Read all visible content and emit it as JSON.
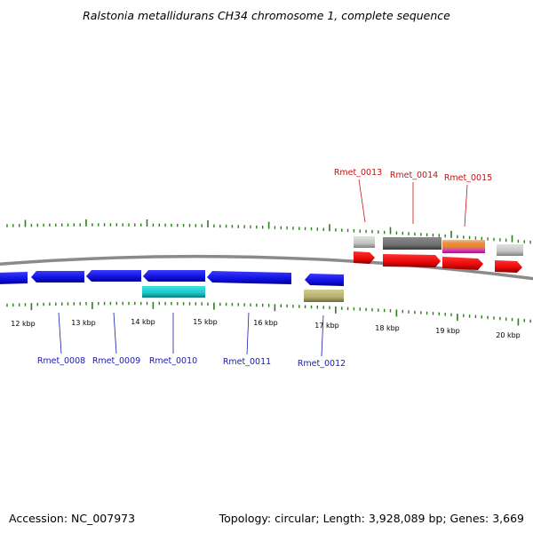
{
  "header": {
    "title": "Ralstonia metallidurans CH34 chromosome 1, complete sequence"
  },
  "footer": {
    "accession": "Accession: NC_007973",
    "summary": "Topology: circular; Length: 3,928,089 bp; Genes: 3,669"
  },
  "colors": {
    "backbone": "#8a8a8a",
    "tick": "#2e7d1e",
    "cds": "#1010e0",
    "cds_dark": "#00008a",
    "cds_forward": "#e80808",
    "cds_forward_dark": "#8a0000",
    "teal": "#1cc8c8",
    "olive": "#b5b070",
    "gray_light": "#c4c4c4",
    "gray_dark": "#707070",
    "label_reverse": "#1a1ab0",
    "label_forward": "#c81010"
  },
  "scale": {
    "ticks": [
      "12 kbp",
      "13 kbp",
      "14 kbp",
      "15 kbp",
      "16 kbp",
      "17 kbp",
      "18 kbp",
      "19 kbp",
      "20 kbp"
    ]
  },
  "labels": {
    "reverse": [
      "Rmet_0008",
      "Rmet_0009",
      "Rmet_0010",
      "Rmet_0011",
      "Rmet_0012"
    ],
    "forward": [
      "Rmet_0013",
      "Rmet_0014",
      "Rmet_0015"
    ]
  }
}
